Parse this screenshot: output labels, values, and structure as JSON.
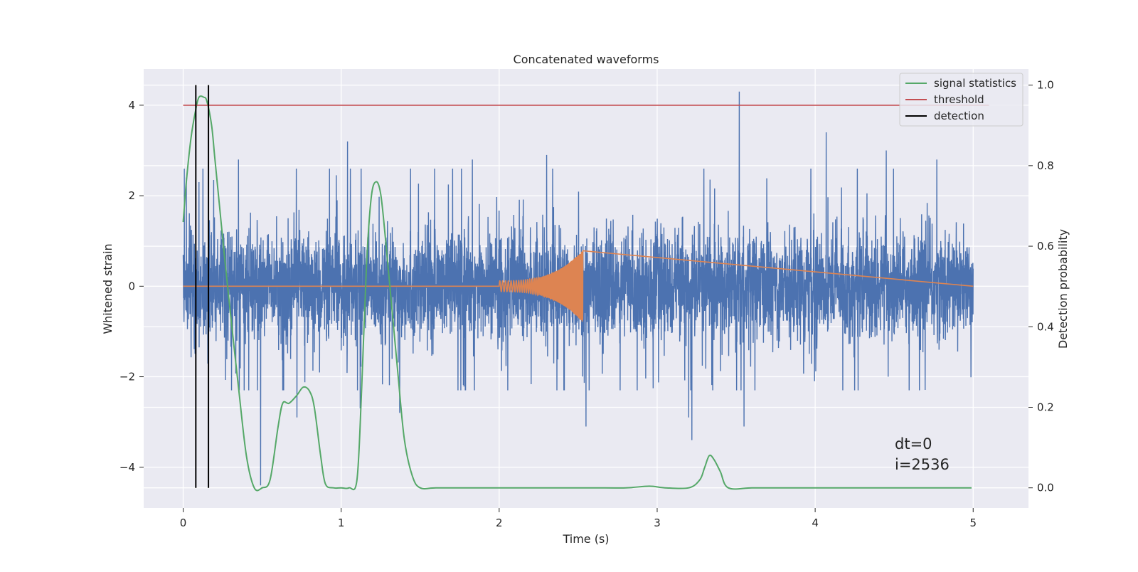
{
  "chart_data": {
    "type": "line",
    "title": "Concatenated waveforms",
    "xlabel": "Time (s)",
    "ylabel_left": "Whitened strain",
    "ylabel_right": "Detection probability",
    "xlim": [
      -0.25,
      5.35
    ],
    "ylim_left": [
      -4.9,
      4.8
    ],
    "ylim_right": [
      -0.05,
      1.04
    ],
    "xticks": [
      0,
      1,
      2,
      3,
      4,
      5
    ],
    "yticks_left": [
      -4,
      -2,
      0,
      2,
      4
    ],
    "yticks_right": [
      0.0,
      0.2,
      0.4,
      0.6,
      0.8,
      1.0
    ],
    "xtick_labels": [
      "0",
      "1",
      "2",
      "3",
      "4",
      "5"
    ],
    "ytick_labels_left": [
      "−4",
      "−2",
      "0",
      "2",
      "4"
    ],
    "ytick_labels_right": [
      "0.0",
      "0.2",
      "0.4",
      "0.6",
      "0.8",
      "1.0"
    ],
    "grid": true,
    "legend_position": "top-right",
    "legend": [
      {
        "name": "signal statistics",
        "color": "#55a868"
      },
      {
        "name": "threshold",
        "color": "#c44e52"
      },
      {
        "name": "detection",
        "color": "#000000"
      }
    ],
    "strain_noise": {
      "color": "#4c72b0",
      "x_range": [
        0,
        5
      ],
      "typical_envelope": [
        -1.6,
        1.8
      ],
      "peaks": [
        {
          "x": 0.02,
          "y": 2.4
        },
        {
          "x": 0.1,
          "y": 2.3
        },
        {
          "x": 0.35,
          "y": 2.8
        },
        {
          "x": 0.47,
          "y": -2.3
        },
        {
          "x": 0.49,
          "y": -4.4
        },
        {
          "x": 0.72,
          "y": -2.9
        },
        {
          "x": 1.04,
          "y": 3.2
        },
        {
          "x": 1.12,
          "y": -2.7
        },
        {
          "x": 1.37,
          "y": -2.8
        },
        {
          "x": 1.83,
          "y": 2.8
        },
        {
          "x": 2.3,
          "y": 2.9
        },
        {
          "x": 2.55,
          "y": -3.1
        },
        {
          "x": 3.2,
          "y": -2.9
        },
        {
          "x": 3.22,
          "y": -3.4
        },
        {
          "x": 3.52,
          "y": 4.3
        },
        {
          "x": 3.55,
          "y": -3.1
        },
        {
          "x": 4.07,
          "y": 3.4
        },
        {
          "x": 4.45,
          "y": 3.0
        },
        {
          "x": 4.77,
          "y": 2.8
        }
      ]
    },
    "injected_signal": {
      "color": "#dd8452",
      "chirp_start": 2.0,
      "chirp_end": 2.53,
      "start_amplitude": 0.12,
      "end_amplitude": 0.8
    },
    "signal_statistics": {
      "color": "#55a868",
      "x": [
        0,
        0.02,
        0.05,
        0.08,
        0.1,
        0.13,
        0.15,
        0.18,
        0.2,
        0.23,
        0.26,
        0.3,
        0.35,
        0.4,
        0.45,
        0.5,
        0.55,
        0.6,
        0.63,
        0.67,
        0.72,
        0.76,
        0.8,
        0.83,
        0.87,
        0.9,
        0.95,
        1.0,
        1.05,
        1.1,
        1.13,
        1.16,
        1.19,
        1.22,
        1.25,
        1.28,
        1.32,
        1.36,
        1.4,
        1.45,
        1.5,
        1.6,
        1.8,
        2.0,
        2.2,
        2.4,
        2.6,
        2.8,
        2.95,
        3.05,
        3.2,
        3.27,
        3.3,
        3.33,
        3.36,
        3.4,
        3.45,
        3.6,
        3.8,
        4.0,
        4.2,
        4.4,
        4.6,
        4.8,
        4.99
      ],
      "values": [
        0.66,
        0.76,
        0.87,
        0.94,
        0.97,
        0.97,
        0.96,
        0.9,
        0.82,
        0.7,
        0.58,
        0.43,
        0.25,
        0.08,
        0.0,
        0.0,
        0.02,
        0.15,
        0.21,
        0.21,
        0.23,
        0.25,
        0.24,
        0.2,
        0.08,
        0.01,
        0.0,
        0.0,
        0.0,
        0.02,
        0.25,
        0.55,
        0.72,
        0.76,
        0.73,
        0.62,
        0.45,
        0.28,
        0.12,
        0.03,
        0.0,
        0.0,
        0.0,
        0.0,
        0.0,
        0.0,
        0.0,
        0.0,
        0.004,
        0.0,
        0.0,
        0.02,
        0.05,
        0.08,
        0.07,
        0.04,
        0.0,
        0.0,
        0.0,
        0.0,
        0.0,
        0.0,
        0.0,
        0.0,
        0.0
      ]
    },
    "threshold": {
      "color": "#c44e52",
      "value": 0.95,
      "x_range": [
        0,
        5.1
      ]
    },
    "detections": {
      "color": "#000000",
      "x": [
        0.08,
        0.16
      ]
    },
    "annotations": [
      "dt=0",
      "i=2536"
    ]
  }
}
